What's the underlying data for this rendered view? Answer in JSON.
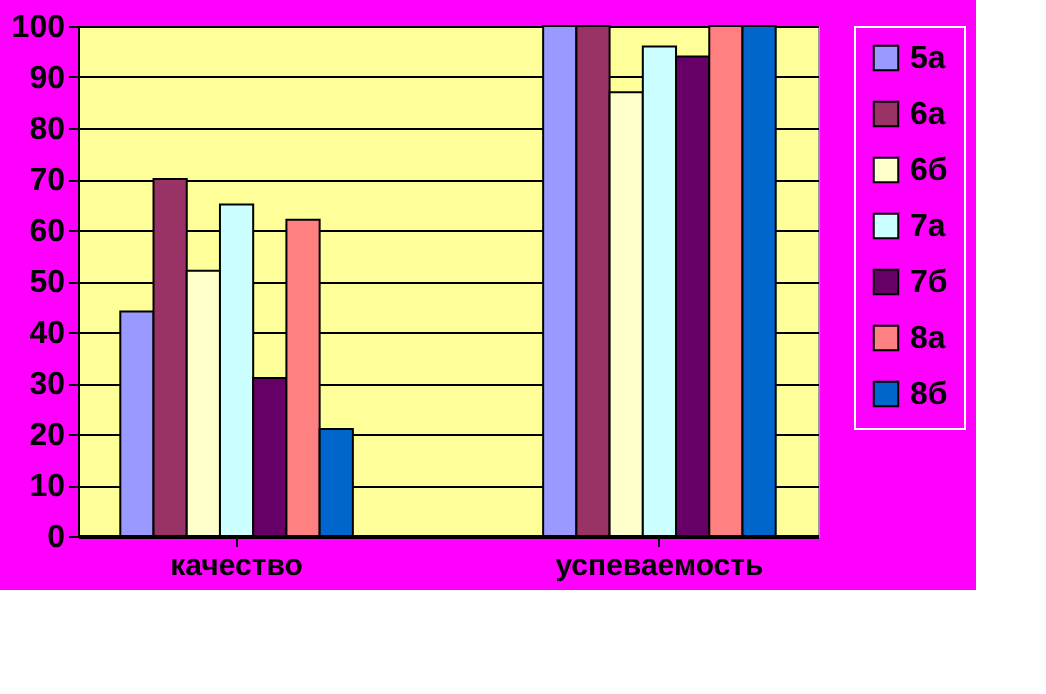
{
  "chart_data": {
    "type": "bar",
    "categories": [
      "качество",
      "успеваемость"
    ],
    "series": [
      {
        "name": "5а",
        "color": "#9999ff",
        "values": [
          44,
          100
        ]
      },
      {
        "name": "6а",
        "color": "#993366",
        "values": [
          70,
          100
        ]
      },
      {
        "name": "6б",
        "color": "#ffffcc",
        "values": [
          52,
          87
        ]
      },
      {
        "name": "7а",
        "color": "#ccffff",
        "values": [
          65,
          96
        ]
      },
      {
        "name": "7б",
        "color": "#660066",
        "values": [
          31,
          94
        ]
      },
      {
        "name": "8а",
        "color": "#ff8080",
        "values": [
          62,
          100
        ]
      },
      {
        "name": "8б",
        "color": "#0066cc",
        "values": [
          21,
          100
        ]
      }
    ],
    "ylim": [
      0,
      100
    ],
    "yticks": [
      0,
      10,
      20,
      30,
      40,
      50,
      60,
      70,
      80,
      90,
      100
    ],
    "grid": "y",
    "legend": "right"
  }
}
